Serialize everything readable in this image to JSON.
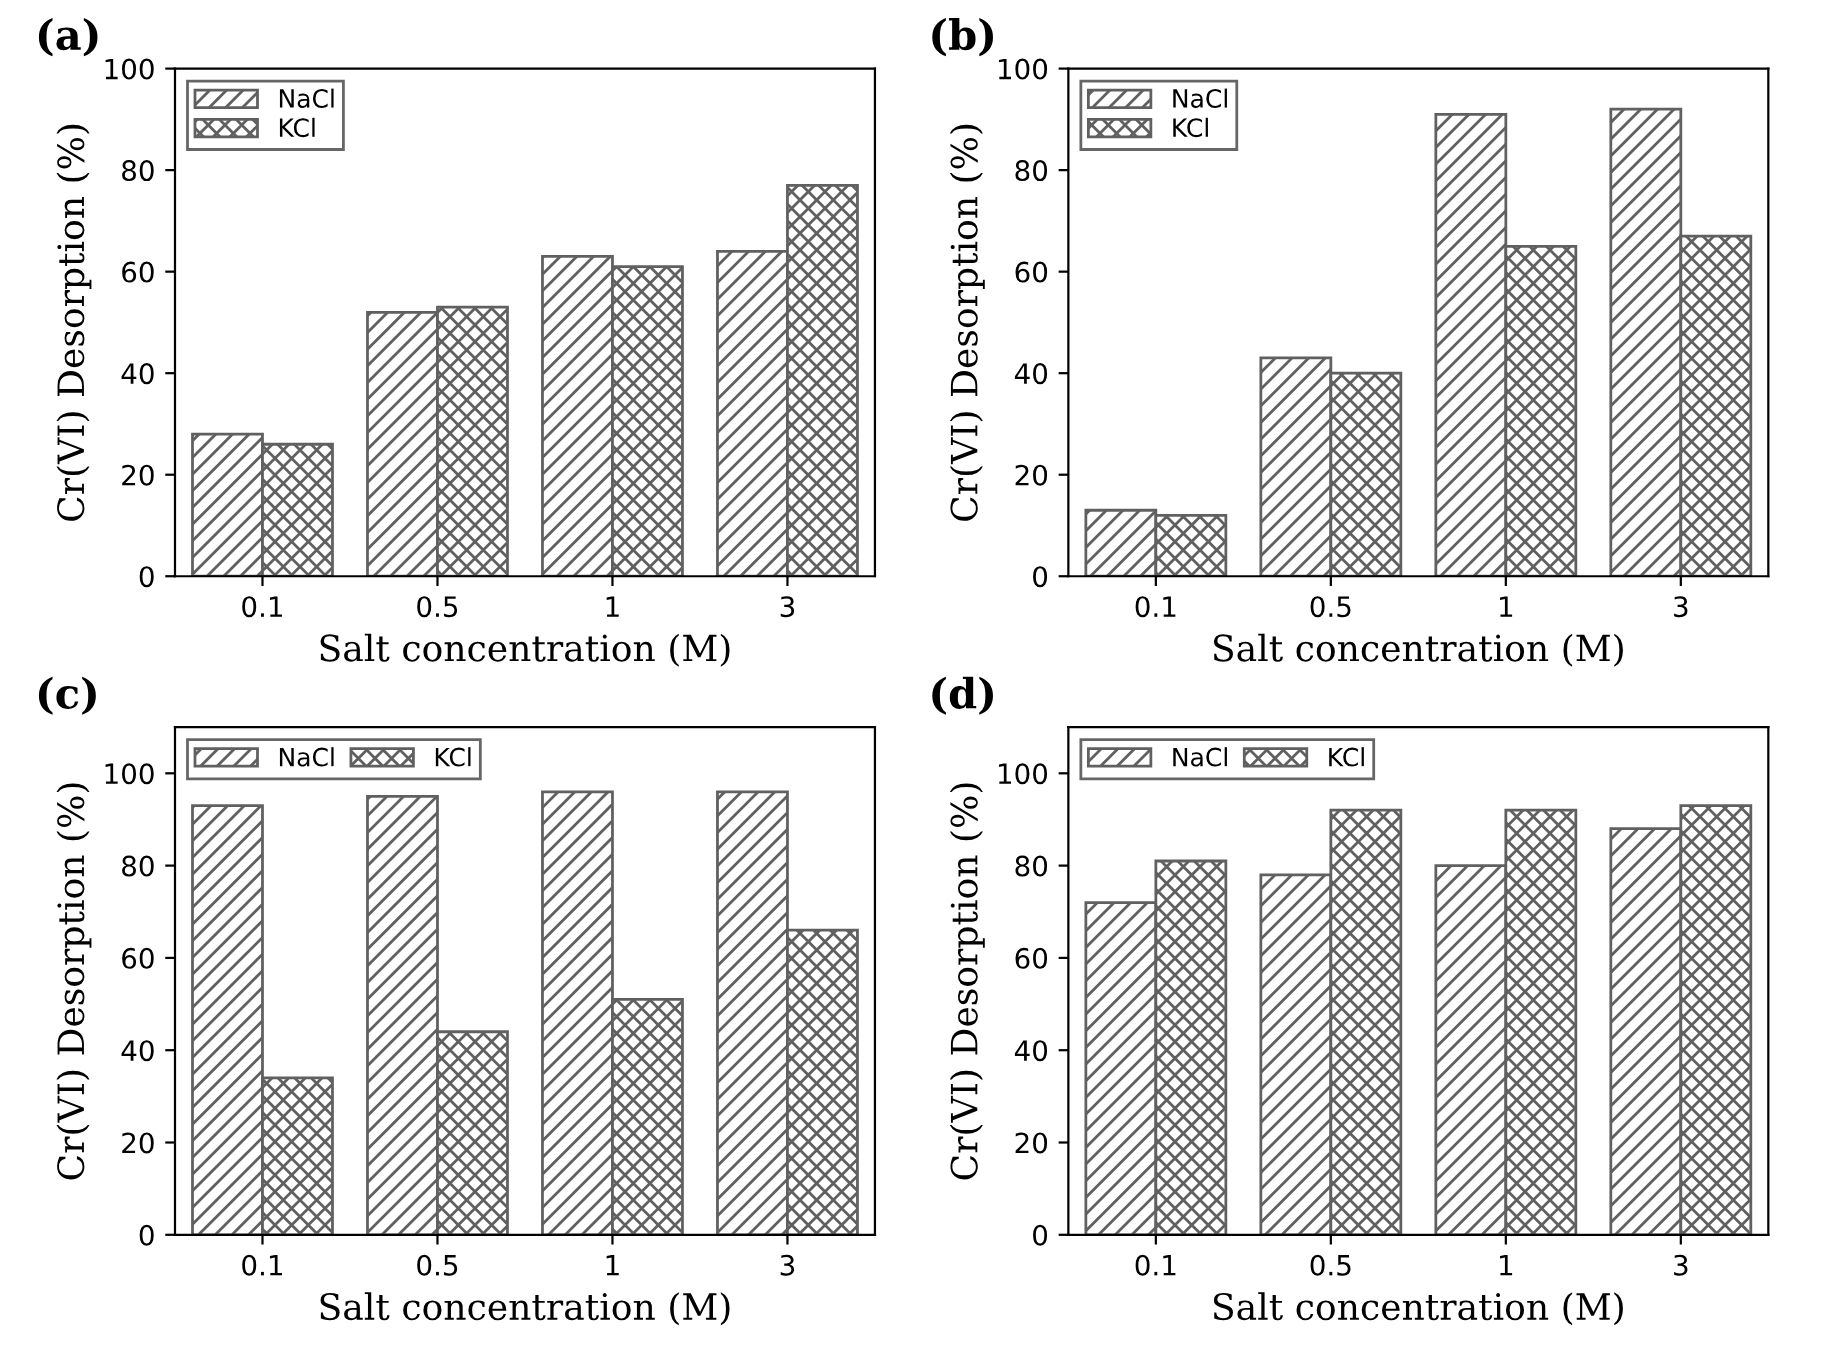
{
  "chart_data": [
    {
      "type": "bar",
      "title": "(a)",
      "xlabel": "Salt concentration (M)",
      "ylabel": "Cr(VI) Desorption (%)",
      "categories": [
        "0.1",
        "0.5",
        "1",
        "3"
      ],
      "ylim": [
        0,
        100
      ],
      "yticks": [
        0,
        20,
        40,
        60,
        80,
        100
      ],
      "legend": "top left",
      "series": [
        {
          "name": "NaCl",
          "color": "#606060",
          "values": [
            28,
            52,
            63,
            64
          ]
        },
        {
          "name": "KCl",
          "color": "#606060",
          "values": [
            26,
            53,
            61,
            77
          ]
        }
      ]
    },
    {
      "type": "bar",
      "title": "(b)",
      "xlabel": "Salt concentration (M)",
      "ylabel": "Cr(VI) Desorption (%)",
      "categories": [
        "0.1",
        "0.5",
        "1",
        "3"
      ],
      "ylim": [
        0,
        100
      ],
      "yticks": [
        0,
        20,
        40,
        60,
        80,
        100
      ],
      "legend": "top left",
      "series": [
        {
          "name": "NaCl",
          "color": "#606060",
          "values": [
            13,
            43,
            91,
            92
          ]
        },
        {
          "name": "KCl",
          "color": "#606060",
          "values": [
            12,
            40,
            65,
            67
          ]
        }
      ]
    },
    {
      "type": "bar",
      "title": "(c)",
      "xlabel": "Salt concentration (M)",
      "ylabel": "Cr(VI) Desorption (%)",
      "categories": [
        "0.1",
        "0.5",
        "1",
        "3"
      ],
      "ylim": [
        0,
        110
      ],
      "yticks": [
        0,
        20,
        40,
        60,
        80,
        100
      ],
      "legend": "top left",
      "series": [
        {
          "name": "NaCl",
          "color": "#606060",
          "values": [
            93,
            95,
            96,
            96
          ]
        },
        {
          "name": "KCl",
          "color": "#606060",
          "values": [
            34,
            44,
            51,
            66
          ]
        }
      ]
    },
    {
      "type": "bar",
      "title": "(d)",
      "xlabel": "Salt concentration (M)",
      "ylabel": "Cr(VI) Desorption (%)",
      "categories": [
        "0.1",
        "0.5",
        "1",
        "3"
      ],
      "ylim": [
        0,
        110
      ],
      "yticks": [
        0,
        20,
        40,
        60,
        80,
        100
      ],
      "legend": "top left",
      "series": [
        {
          "name": "NaCl",
          "color": "#606060",
          "values": [
            72,
            78,
            80,
            88
          ]
        },
        {
          "name": "KCl",
          "color": "#606060",
          "values": [
            81,
            92,
            92,
            93
          ]
        }
      ]
    }
  ]
}
